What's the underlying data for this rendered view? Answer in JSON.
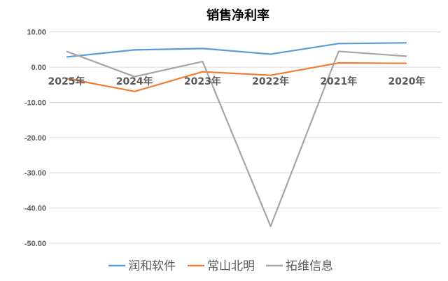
{
  "chart_data": {
    "type": "line",
    "title": "销售净利率",
    "categories": [
      "2025年",
      "2024年",
      "2023年",
      "2022年",
      "2021年",
      "2020年"
    ],
    "ylim": [
      -50,
      10
    ],
    "yticks": [
      "10.00",
      "0.00",
      "-10.00",
      "-20.00",
      "-30.00",
      "-40.00",
      "-50.00"
    ],
    "ytick_values": [
      10,
      0,
      -10,
      -20,
      -30,
      -40,
      -50
    ],
    "grid": true,
    "legend": "bottom",
    "series": [
      {
        "name": "润和软件",
        "color": "#5B9BD5",
        "values": [
          2.9,
          4.9,
          5.3,
          3.7,
          6.7,
          6.9
        ]
      },
      {
        "name": "常山北明",
        "color": "#ED7D31",
        "values": [
          -3.2,
          -6.9,
          -1.3,
          -2.3,
          1.2,
          1.1
        ]
      },
      {
        "name": "拓维信息",
        "color": "#A5A5A5",
        "values": [
          4.5,
          -2.7,
          1.6,
          -45.2,
          4.5,
          3.1
        ]
      }
    ]
  }
}
